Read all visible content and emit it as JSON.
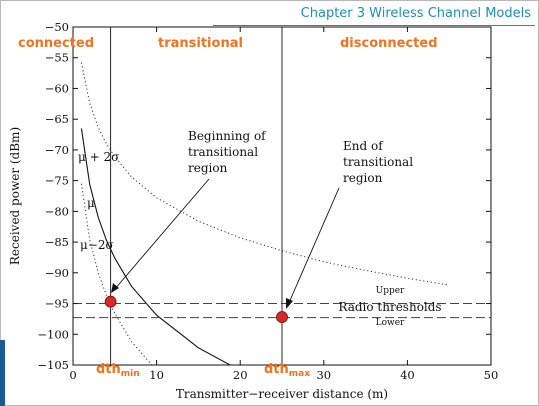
{
  "slide": {
    "header": "Chapter 3 Wireless Channel Models"
  },
  "regions": {
    "connected": "connected",
    "transitional": "transitional",
    "disconnected": "disconnected"
  },
  "thresholds": {
    "dth_min_main": "dth",
    "dth_min_sub": "min",
    "dth_max_main": "dth",
    "dth_max_sub": "max"
  },
  "annotations": {
    "begin_line1": "Beginning of",
    "begin_line2": "transitional",
    "begin_line3": "region",
    "end_line1": "End of",
    "end_line2": "transitional",
    "end_line3": "region",
    "upper": "Upper",
    "radio_thresholds": "Radio thresholds",
    "lower": "Lower",
    "mu_plus": "μ + 2σ",
    "mu": "μ",
    "mu_minus": "μ−2σ"
  },
  "colors": {
    "accent_orange": "#f0731f",
    "header_blue": "#1c8fb3",
    "marker_red": "#d62a2a",
    "side_bar": "#1b5a93"
  },
  "chart_data": {
    "type": "line",
    "xlabel": "Transmitter−receiver distance (m)",
    "ylabel": "Received power (dBm)",
    "xlim": [
      0,
      50
    ],
    "ylim": [
      -105,
      -50
    ],
    "xticks": [
      0,
      10,
      20,
      30,
      40,
      50
    ],
    "yticks": [
      -50,
      -55,
      -60,
      -65,
      -70,
      -75,
      -80,
      -85,
      -90,
      -95,
      -100,
      -105
    ],
    "grid": false,
    "series": [
      {
        "name": "μ + 2σ",
        "style": "dotted",
        "x": [
          1,
          2,
          3,
          4,
          5,
          7,
          10,
          15,
          20,
          25,
          30,
          35,
          40,
          45
        ],
        "y": [
          -55.8,
          -62.4,
          -66.3,
          -69.0,
          -71.1,
          -74.4,
          -77.8,
          -81.6,
          -84.3,
          -86.4,
          -88.2,
          -89.6,
          -90.9,
          -92.0
        ]
      },
      {
        "name": "μ",
        "style": "solid",
        "x": [
          1,
          2,
          3,
          4,
          5,
          7,
          10,
          15,
          20,
          23
        ],
        "y": [
          -66.5,
          -75.6,
          -80.9,
          -84.7,
          -87.6,
          -92.2,
          -96.9,
          -102.2,
          -105.9,
          -107.6
        ]
      },
      {
        "name": "μ−2σ",
        "style": "dotted",
        "x": [
          1,
          2,
          3,
          4,
          5,
          7,
          10,
          12
        ],
        "y": [
          -75.5,
          -84.6,
          -89.9,
          -93.7,
          -96.6,
          -101.2,
          -105.9,
          -108.3
        ]
      }
    ],
    "thresholds": {
      "upper": -95,
      "lower": -97.3
    },
    "vertical_lines": {
      "dth_min": 4.5,
      "dth_max": 25.0
    },
    "markers": [
      {
        "x": 4.5,
        "y": -94.7
      },
      {
        "x": 25.0,
        "y": -97.2
      }
    ]
  }
}
